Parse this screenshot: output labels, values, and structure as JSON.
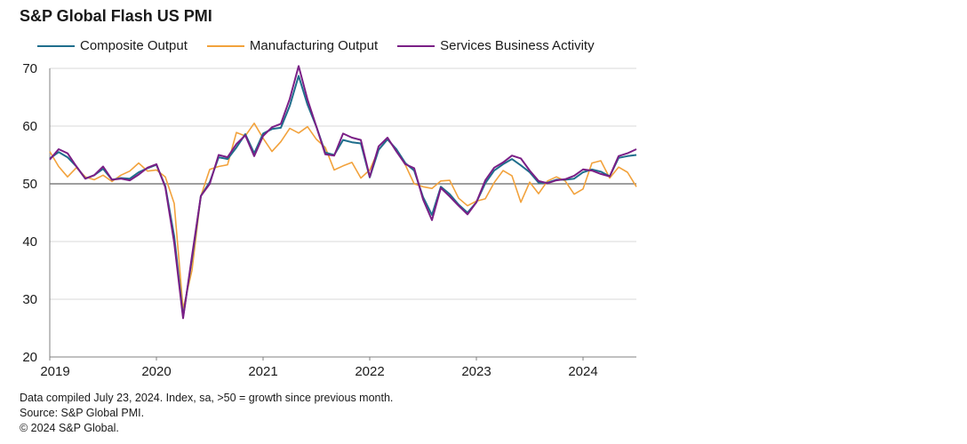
{
  "title": "S&P Global Flash US PMI",
  "footnotes": {
    "line1": "Data compiled July 23, 2024. Index, sa, >50 = growth since previous month.",
    "line2": "Source: S&P Global PMI.",
    "line3": "© 2024 S&P Global."
  },
  "colors": {
    "composite": "#1f6e8c",
    "manufacturing": "#f2a23c",
    "services": "#7a1f86",
    "grid": "#d9d9d9",
    "axis": "#808080"
  },
  "chart_data": {
    "type": "line",
    "title": "S&P Global Flash US PMI",
    "xlabel": "",
    "ylabel": "",
    "ylim": [
      20,
      70
    ],
    "yticks": [
      20,
      30,
      40,
      50,
      60,
      70
    ],
    "reference_line": 50,
    "x_start": "2019-01",
    "xticks": [
      {
        "label": "2019",
        "index": 0
      },
      {
        "label": "2020",
        "index": 12
      },
      {
        "label": "2021",
        "index": 24
      },
      {
        "label": "2022",
        "index": 36
      },
      {
        "label": "2023",
        "index": 48
      },
      {
        "label": "2024",
        "index": 60
      }
    ],
    "legend": "top",
    "series": [
      {
        "name": "Composite Output",
        "key": "composite",
        "values": [
          54.4,
          55.5,
          54.6,
          53.0,
          50.9,
          51.5,
          52.6,
          50.7,
          51.0,
          50.9,
          52.0,
          52.7,
          53.3,
          49.6,
          40.9,
          27.0,
          37.0,
          47.9,
          50.3,
          54.6,
          54.3,
          56.3,
          58.6,
          55.3,
          58.7,
          59.5,
          59.7,
          63.5,
          68.7,
          63.7,
          59.9,
          55.4,
          55.0,
          57.6,
          57.2,
          57.0,
          51.1,
          55.9,
          57.7,
          56.0,
          53.6,
          52.3,
          47.7,
          44.6,
          49.5,
          48.2,
          46.4,
          45.0,
          46.8,
          50.1,
          52.3,
          53.4,
          54.3,
          53.2,
          52.0,
          50.2,
          50.2,
          50.7,
          50.7,
          50.9,
          52.0,
          52.5,
          52.1,
          51.3,
          54.5,
          54.8,
          55.0
        ]
      },
      {
        "name": "Manufacturing Output",
        "key": "manufacturing",
        "values": [
          55.6,
          53.0,
          51.2,
          52.8,
          51.2,
          50.7,
          51.5,
          50.4,
          51.5,
          52.2,
          53.6,
          52.2,
          52.4,
          51.2,
          46.6,
          28.3,
          35.0,
          47.9,
          52.5,
          53.0,
          53.3,
          58.9,
          58.3,
          60.5,
          57.9,
          55.6,
          57.3,
          59.6,
          58.8,
          59.9,
          57.7,
          56.3,
          52.4,
          53.1,
          53.7,
          51.0,
          52.4,
          55.9,
          57.7,
          55.8,
          53.3,
          50.0,
          49.5,
          49.2,
          50.5,
          50.6,
          47.5,
          46.2,
          47.0,
          47.4,
          50.2,
          52.3,
          51.4,
          46.8,
          50.3,
          48.3,
          50.5,
          51.2,
          50.5,
          48.2,
          49.1,
          53.6,
          54.0,
          51.0,
          52.9,
          52.0,
          49.5
        ]
      },
      {
        "name": "Services Business Activity",
        "key": "services",
        "values": [
          54.2,
          56.0,
          55.3,
          53.0,
          50.9,
          51.5,
          53.0,
          50.7,
          50.9,
          50.6,
          51.6,
          52.8,
          53.4,
          49.4,
          39.8,
          26.7,
          37.5,
          47.9,
          50.0,
          55.0,
          54.6,
          56.9,
          58.4,
          54.8,
          58.3,
          59.8,
          60.4,
          64.7,
          70.4,
          64.6,
          59.9,
          55.1,
          54.9,
          58.7,
          58.0,
          57.6,
          51.2,
          56.5,
          58.0,
          55.6,
          53.4,
          52.7,
          47.3,
          43.7,
          49.3,
          47.8,
          46.2,
          44.7,
          46.8,
          50.6,
          52.8,
          53.7,
          54.9,
          54.4,
          52.3,
          50.5,
          50.1,
          50.6,
          50.8,
          51.4,
          52.5,
          52.3,
          51.7,
          51.3,
          54.8,
          55.3,
          56.0
        ]
      }
    ]
  }
}
